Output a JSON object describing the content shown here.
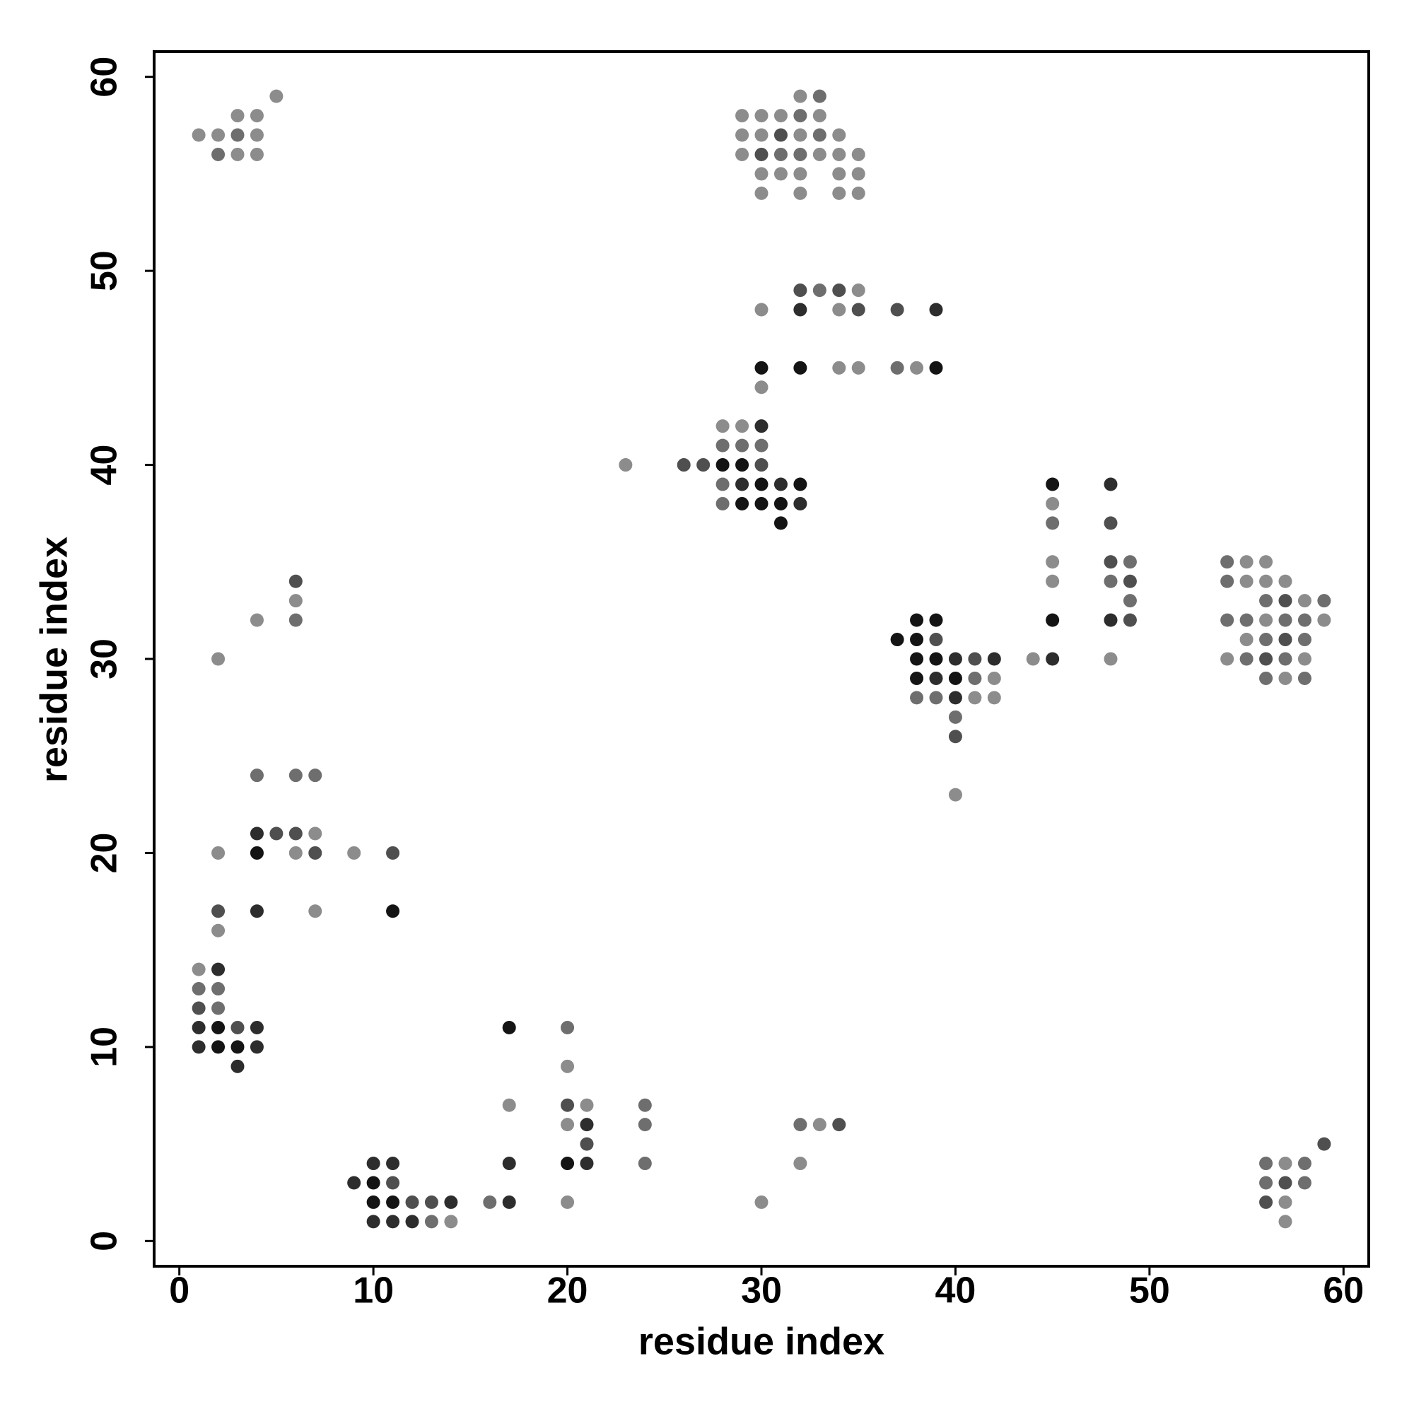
{
  "chart_data": {
    "type": "scatter",
    "xlabel": "residue index",
    "ylabel": "residue index",
    "xlim": [
      -1.3,
      61.3
    ],
    "ylim": [
      -1.3,
      61.3
    ],
    "xticks": [
      0,
      10,
      20,
      30,
      40,
      50,
      60
    ],
    "yticks": [
      0,
      10,
      20,
      30,
      40,
      50,
      60
    ],
    "grid": false,
    "x": [
      5,
      3,
      4,
      1,
      2,
      3,
      4,
      2,
      3,
      4,
      32,
      33,
      29,
      30,
      31,
      32,
      33,
      29,
      30,
      31,
      32,
      33,
      34,
      29,
      30,
      31,
      32,
      33,
      34,
      35,
      30,
      31,
      32,
      34,
      35,
      30,
      32,
      34,
      35,
      32,
      33,
      34,
      35,
      30,
      32,
      34,
      35,
      37,
      39,
      30,
      32,
      34,
      35,
      37,
      38,
      39,
      30,
      28,
      29,
      30,
      28,
      29,
      30,
      23,
      26,
      27,
      28,
      29,
      30,
      28,
      29,
      30,
      31,
      32,
      28,
      29,
      30,
      31,
      32,
      31,
      45,
      48,
      45,
      45,
      48,
      45,
      48,
      49,
      54,
      55,
      56,
      6,
      45,
      48,
      49,
      54,
      55,
      56,
      57,
      6,
      49,
      56,
      57,
      58,
      59,
      4,
      6,
      38,
      39,
      45,
      48,
      49,
      54,
      55,
      56,
      57,
      58,
      59,
      37,
      38,
      39,
      55,
      56,
      57,
      58,
      2,
      38,
      39,
      40,
      41,
      42,
      44,
      45,
      48,
      54,
      55,
      56,
      57,
      58,
      38,
      39,
      40,
      41,
      42,
      56,
      57,
      58,
      38,
      39,
      40,
      41,
      42,
      40,
      40,
      4,
      6,
      7,
      40,
      4,
      5,
      6,
      7,
      2,
      4,
      6,
      7,
      9,
      11,
      2,
      4,
      7,
      11,
      2,
      1,
      2,
      1,
      2,
      1,
      2,
      1,
      2,
      3,
      4,
      17,
      20,
      1,
      2,
      3,
      4,
      3,
      20,
      17,
      20,
      21,
      24,
      20,
      21,
      24,
      32,
      33,
      34,
      21,
      59,
      10,
      11,
      17,
      20,
      21,
      24,
      32,
      56,
      57,
      58,
      9,
      10,
      11,
      56,
      57,
      58,
      10,
      11,
      12,
      13,
      14,
      16,
      17,
      20,
      30,
      56,
      57,
      10,
      11,
      12,
      13,
      14,
      57
    ],
    "values": [
      59,
      58,
      58,
      57,
      57,
      57,
      57,
      56,
      56,
      56,
      59,
      59,
      58,
      58,
      58,
      58,
      58,
      57,
      57,
      57,
      57,
      57,
      57,
      56,
      56,
      56,
      56,
      56,
      56,
      56,
      55,
      55,
      55,
      55,
      55,
      54,
      54,
      54,
      54,
      49,
      49,
      49,
      49,
      48,
      48,
      48,
      48,
      48,
      48,
      45,
      45,
      45,
      45,
      45,
      45,
      45,
      44,
      42,
      42,
      42,
      41,
      41,
      41,
      40,
      40,
      40,
      40,
      40,
      40,
      39,
      39,
      39,
      39,
      39,
      38,
      38,
      38,
      38,
      38,
      37,
      39,
      39,
      38,
      37,
      37,
      35,
      35,
      35,
      35,
      35,
      35,
      34,
      34,
      34,
      34,
      34,
      34,
      34,
      34,
      33,
      33,
      33,
      33,
      33,
      33,
      32,
      32,
      32,
      32,
      32,
      32,
      32,
      32,
      32,
      32,
      32,
      32,
      32,
      31,
      31,
      31,
      31,
      31,
      31,
      31,
      30,
      30,
      30,
      30,
      30,
      30,
      30,
      30,
      30,
      30,
      30,
      30,
      30,
      30,
      29,
      29,
      29,
      29,
      29,
      29,
      29,
      29,
      28,
      28,
      28,
      28,
      28,
      27,
      26,
      24,
      24,
      24,
      23,
      21,
      21,
      21,
      21,
      20,
      20,
      20,
      20,
      20,
      20,
      17,
      17,
      17,
      17,
      16,
      14,
      14,
      13,
      13,
      12,
      12,
      11,
      11,
      11,
      11,
      11,
      11,
      10,
      10,
      10,
      10,
      9,
      9,
      7,
      7,
      7,
      7,
      6,
      6,
      6,
      6,
      6,
      6,
      5,
      5,
      4,
      4,
      4,
      4,
      4,
      4,
      4,
      4,
      4,
      4,
      3,
      3,
      3,
      3,
      3,
      3,
      2,
      2,
      2,
      2,
      2,
      2,
      2,
      2,
      2,
      2,
      2,
      1,
      1,
      1,
      1,
      1,
      1
    ],
    "colors": [
      "#8c8c8c",
      "#8c8c8c",
      "#8c8c8c",
      "#8c8c8c",
      "#8c8c8c",
      "#6e6e6e",
      "#8c8c8c",
      "#6e6e6e",
      "#8c8c8c",
      "#8c8c8c",
      "#8c8c8c",
      "#6e6e6e",
      "#8c8c8c",
      "#8c8c8c",
      "#8c8c8c",
      "#6e6e6e",
      "#8c8c8c",
      "#8c8c8c",
      "#8c8c8c",
      "#4f4f4f",
      "#8c8c8c",
      "#6e6e6e",
      "#8c8c8c",
      "#8c8c8c",
      "#4f4f4f",
      "#6e6e6e",
      "#6e6e6e",
      "#8c8c8c",
      "#8c8c8c",
      "#8c8c8c",
      "#8c8c8c",
      "#8c8c8c",
      "#8c8c8c",
      "#8c8c8c",
      "#8c8c8c",
      "#8c8c8c",
      "#8c8c8c",
      "#8c8c8c",
      "#8c8c8c",
      "#4f4f4f",
      "#6e6e6e",
      "#4f4f4f",
      "#8c8c8c",
      "#8c8c8c",
      "#2d2d2d",
      "#8c8c8c",
      "#4f4f4f",
      "#4f4f4f",
      "#2d2d2d",
      "#141414",
      "#141414",
      "#8c8c8c",
      "#8c8c8c",
      "#6e6e6e",
      "#8c8c8c",
      "#141414",
      "#8c8c8c",
      "#8c8c8c",
      "#8c8c8c",
      "#2d2d2d",
      "#6e6e6e",
      "#6e6e6e",
      "#6e6e6e",
      "#8c8c8c",
      "#4f4f4f",
      "#4f4f4f",
      "#141414",
      "#141414",
      "#4f4f4f",
      "#6e6e6e",
      "#2d2d2d",
      "#141414",
      "#2d2d2d",
      "#141414",
      "#6e6e6e",
      "#141414",
      "#141414",
      "#141414",
      "#2d2d2d",
      "#141414",
      "#141414",
      "#2d2d2d",
      "#8c8c8c",
      "#6e6e6e",
      "#4f4f4f",
      "#8c8c8c",
      "#4f4f4f",
      "#6e6e6e",
      "#6e6e6e",
      "#8c8c8c",
      "#8c8c8c",
      "#4f4f4f",
      "#8c8c8c",
      "#6e6e6e",
      "#4f4f4f",
      "#6e6e6e",
      "#8c8c8c",
      "#8c8c8c",
      "#8c8c8c",
      "#8c8c8c",
      "#6e6e6e",
      "#6e6e6e",
      "#4f4f4f",
      "#8c8c8c",
      "#6e6e6e",
      "#8c8c8c",
      "#6e6e6e",
      "#141414",
      "#141414",
      "#141414",
      "#2d2d2d",
      "#4f4f4f",
      "#6e6e6e",
      "#6e6e6e",
      "#8c8c8c",
      "#6e6e6e",
      "#6e6e6e",
      "#8c8c8c",
      "#141414",
      "#141414",
      "#4f4f4f",
      "#8c8c8c",
      "#6e6e6e",
      "#4f4f4f",
      "#6e6e6e",
      "#8c8c8c",
      "#141414",
      "#141414",
      "#2d2d2d",
      "#4f4f4f",
      "#2d2d2d",
      "#8c8c8c",
      "#2d2d2d",
      "#8c8c8c",
      "#8c8c8c",
      "#6e6e6e",
      "#4f4f4f",
      "#6e6e6e",
      "#8c8c8c",
      "#141414",
      "#2d2d2d",
      "#141414",
      "#6e6e6e",
      "#8c8c8c",
      "#6e6e6e",
      "#8c8c8c",
      "#6e6e6e",
      "#6e6e6e",
      "#6e6e6e",
      "#2d2d2d",
      "#8c8c8c",
      "#8c8c8c",
      "#6e6e6e",
      "#4f4f4f",
      "#6e6e6e",
      "#6e6e6e",
      "#6e6e6e",
      "#8c8c8c",
      "#2d2d2d",
      "#4f4f4f",
      "#4f4f4f",
      "#8c8c8c",
      "#8c8c8c",
      "#141414",
      "#8c8c8c",
      "#4f4f4f",
      "#8c8c8c",
      "#4f4f4f",
      "#4f4f4f",
      "#2d2d2d",
      "#8c8c8c",
      "#141414",
      "#8c8c8c",
      "#8c8c8c",
      "#2d2d2d",
      "#6e6e6e",
      "#6e6e6e",
      "#4f4f4f",
      "#6e6e6e",
      "#2d2d2d",
      "#141414",
      "#4f4f4f",
      "#2d2d2d",
      "#141414",
      "#6e6e6e",
      "#2d2d2d",
      "#141414",
      "#141414",
      "#2d2d2d",
      "#2d2d2d",
      "#8c8c8c",
      "#8c8c8c",
      "#4f4f4f",
      "#8c8c8c",
      "#6e6e6e",
      "#8c8c8c",
      "#2d2d2d",
      "#6e6e6e",
      "#6e6e6e",
      "#8c8c8c",
      "#4f4f4f",
      "#4f4f4f",
      "#4f4f4f",
      "#2d2d2d",
      "#2d2d2d",
      "#2d2d2d",
      "#141414",
      "#2d2d2d",
      "#6e6e6e",
      "#8c8c8c",
      "#6e6e6e",
      "#8c8c8c",
      "#6e6e6e",
      "#2d2d2d",
      "#141414",
      "#4f4f4f",
      "#6e6e6e",
      "#4f4f4f",
      "#6e6e6e",
      "#141414",
      "#141414",
      "#4f4f4f",
      "#4f4f4f",
      "#2d2d2d",
      "#6e6e6e",
      "#2d2d2d",
      "#8c8c8c",
      "#8c8c8c",
      "#4f4f4f",
      "#8c8c8c",
      "#2d2d2d",
      "#2d2d2d",
      "#2d2d2d",
      "#6e6e6e",
      "#8c8c8c",
      "#8c8c8c"
    ]
  }
}
